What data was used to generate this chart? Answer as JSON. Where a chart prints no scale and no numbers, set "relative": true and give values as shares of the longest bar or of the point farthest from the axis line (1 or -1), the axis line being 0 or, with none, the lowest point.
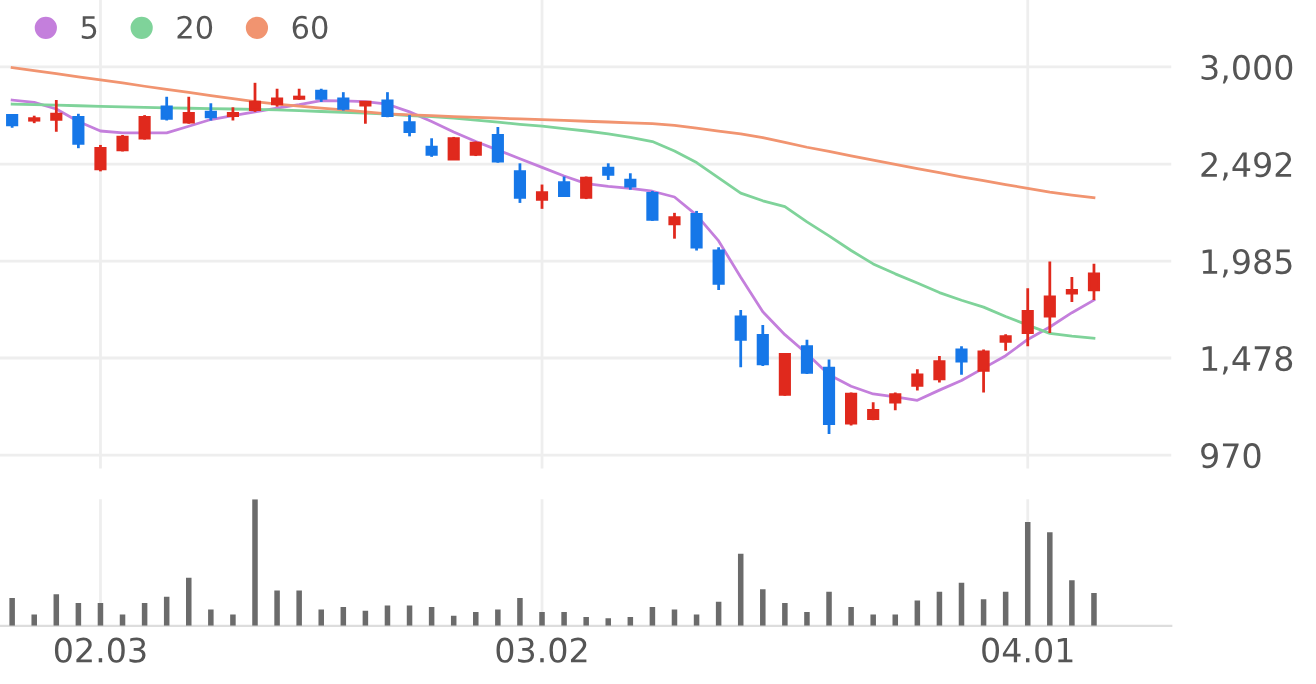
{
  "chart_data": [
    {
      "type": "candlestick",
      "categories": [
        null,
        null,
        null,
        null,
        "02.03",
        null,
        null,
        null,
        null,
        null,
        null,
        null,
        null,
        null,
        null,
        null,
        null,
        null,
        null,
        null,
        null,
        null,
        null,
        null,
        "03.02",
        null,
        null,
        null,
        null,
        null,
        null,
        null,
        null,
        null,
        null,
        null,
        null,
        null,
        null,
        null,
        null,
        null,
        null,
        null,
        null,
        null,
        "04.01",
        null,
        null,
        null
      ],
      "ohlc": [
        [
          2748,
          2748,
          2682,
          2696
        ],
        [
          2720,
          2745,
          2706,
          2731
        ],
        [
          2724,
          2827,
          2661,
          2755
        ],
        [
          2737,
          2755,
          2575,
          2599
        ],
        [
          2465,
          2592,
          2454,
          2575
        ],
        [
          2565,
          2644,
          2558,
          2634
        ],
        [
          2627,
          2748,
          2620,
          2737
        ],
        [
          2792,
          2844,
          2720,
          2730
        ],
        [
          2710,
          2844,
          2703,
          2758
        ],
        [
          2765,
          2810,
          2720,
          2737
        ],
        [
          2744,
          2789,
          2720,
          2758
        ],
        [
          2775,
          2917,
          2765,
          2817
        ],
        [
          2806,
          2886,
          2792,
          2834
        ],
        [
          2834,
          2886,
          2827,
          2844
        ],
        [
          2875,
          2886,
          2817,
          2834
        ],
        [
          2834,
          2868,
          2772,
          2782
        ],
        [
          2799,
          2817,
          2703,
          2817
        ],
        [
          2824,
          2868,
          2737,
          2744
        ],
        [
          2710,
          2748,
          2637,
          2661
        ],
        [
          2582,
          2627,
          2530,
          2541
        ],
        [
          2517,
          2634,
          2517,
          2627
        ],
        [
          2541,
          2610,
          2534,
          2603
        ],
        [
          2644,
          2686,
          2499,
          2506
        ],
        [
          2454,
          2496,
          2289,
          2316
        ],
        [
          2306,
          2385,
          2258,
          2344
        ],
        [
          2396,
          2427,
          2326,
          2326
        ],
        [
          2316,
          2427,
          2309,
          2420
        ],
        [
          2472,
          2496,
          2409,
          2437
        ],
        [
          2409,
          2444,
          2358,
          2375
        ],
        [
          2340,
          2351,
          2195,
          2202
        ],
        [
          2178,
          2237,
          2102,
          2213
        ],
        [
          2230,
          2247,
          2040,
          2057
        ],
        [
          2040,
          2057,
          1833,
          1867
        ],
        [
          1695,
          1729,
          1429,
          1574
        ],
        [
          1598,
          1650,
          1436,
          1446
        ],
        [
          1287,
          1498,
          1281,
          1498
        ],
        [
          1539,
          1574,
          1394,
          1401
        ],
        [
          1426,
          1470,
          1080,
          1134
        ],
        [
          1136,
          1298,
          1125,
          1291
        ],
        [
          1160,
          1246,
          1153,
          1205
        ],
        [
          1246,
          1298,
          1205,
          1288
        ],
        [
          1333,
          1419,
          1308,
          1391
        ],
        [
          1367,
          1488,
          1350,
          1460
        ],
        [
          1522,
          1540,
          1391,
          1460
        ],
        [
          1412,
          1522,
          1298,
          1512
        ],
        [
          1564,
          1602,
          1516,
          1591
        ],
        [
          1609,
          1843,
          1540,
          1723
        ],
        [
          1695,
          1982,
          1609,
          1799
        ],
        [
          1816,
          1902,
          1771,
          1833
        ],
        [
          1833,
          1971,
          1781,
          1919
        ]
      ],
      "colors": [
        "#1677e8",
        "#e0291d",
        "#e0291d",
        "#1677e8",
        "#e0291d",
        "#e0291d",
        "#e0291d",
        "#1677e8",
        "#e0291d",
        "#1677e8",
        "#e0291d",
        "#e0291d",
        "#e0291d",
        "#e0291d",
        "#1677e8",
        "#1677e8",
        "#e0291d",
        "#1677e8",
        "#1677e8",
        "#1677e8",
        "#e0291d",
        "#e0291d",
        "#1677e8",
        "#1677e8",
        "#e0291d",
        "#1677e8",
        "#e0291d",
        "#1677e8",
        "#1677e8",
        "#1677e8",
        "#e0291d",
        "#1677e8",
        "#1677e8",
        "#1677e8",
        "#1677e8",
        "#e0291d",
        "#1677e8",
        "#1677e8",
        "#e0291d",
        "#e0291d",
        "#e0291d",
        "#e0291d",
        "#e0291d",
        "#1677e8",
        "#e0291d",
        "#e0291d",
        "#e0291d",
        "#e0291d",
        "#e0291d",
        "#e0291d"
      ],
      "series": [
        {
          "name": "5",
          "type": "line",
          "color": "#c47fdc",
          "values": [
            2827,
            2815,
            2780,
            2715,
            2665,
            2655,
            2655,
            2655,
            2690,
            2725,
            2745,
            2765,
            2785,
            2803,
            2824,
            2822,
            2819,
            2805,
            2765,
            2715,
            2660,
            2610,
            2565,
            2520,
            2475,
            2430,
            2390,
            2375,
            2365,
            2350,
            2320,
            2225,
            2090,
            1900,
            1720,
            1600,
            1500,
            1390,
            1330,
            1290,
            1275,
            1257,
            1310,
            1360,
            1425,
            1490,
            1575,
            1640,
            1715,
            1781
          ]
        },
        {
          "name": "20",
          "type": "line",
          "color": "#7fd39a",
          "values": [
            2806,
            2803,
            2800,
            2797,
            2794,
            2791,
            2788,
            2786,
            2784,
            2782,
            2780,
            2778,
            2775,
            2771,
            2767,
            2763,
            2759,
            2753,
            2746,
            2740,
            2732,
            2722,
            2711,
            2700,
            2690,
            2678,
            2665,
            2650,
            2632,
            2610,
            2560,
            2500,
            2420,
            2340,
            2300,
            2270,
            2190,
            2117,
            2040,
            1970,
            1918,
            1870,
            1820,
            1780,
            1744,
            1695,
            1650,
            1607,
            1592,
            1581
          ]
        },
        {
          "name": "60",
          "type": "line",
          "color": "#f19470",
          "values": [
            2997,
            2981,
            2965,
            2948,
            2932,
            2916,
            2899,
            2883,
            2867,
            2850,
            2834,
            2818,
            2805,
            2795,
            2785,
            2775,
            2765,
            2755,
            2749,
            2745,
            2740,
            2736,
            2732,
            2728,
            2724,
            2720,
            2716,
            2712,
            2708,
            2703,
            2695,
            2680,
            2664,
            2650,
            2630,
            2605,
            2580,
            2558,
            2535,
            2513,
            2490,
            2468,
            2447,
            2425,
            2405,
            2385,
            2365,
            2345,
            2330,
            2316
          ]
        }
      ],
      "ylim": [
        900,
        3350
      ],
      "yticks": [
        {
          "value": 3000,
          "label": "3,000"
        },
        {
          "value": 2492,
          "label": "2,492"
        },
        {
          "value": 1985,
          "label": "1,985"
        },
        {
          "value": 1478,
          "label": "1,478"
        },
        {
          "value": 970,
          "label": "970"
        }
      ],
      "grid": true,
      "legend": "top left",
      "tick_labels": "y"
    },
    {
      "type": "bar",
      "relative": true,
      "color": "#6b6b6b",
      "grid": "x",
      "categories": [
        null,
        null,
        null,
        null,
        "02.03",
        null,
        null,
        null,
        null,
        null,
        null,
        null,
        null,
        null,
        null,
        null,
        null,
        null,
        null,
        null,
        null,
        null,
        null,
        null,
        "03.02",
        null,
        null,
        null,
        null,
        null,
        null,
        null,
        null,
        null,
        null,
        null,
        null,
        null,
        null,
        null,
        null,
        null,
        null,
        null,
        null,
        null,
        "04.01",
        null,
        null,
        null
      ],
      "values": [
        0.22,
        0.09,
        0.25,
        0.18,
        0.18,
        0.09,
        0.18,
        0.23,
        0.38,
        0.13,
        0.09,
        1,
        0.28,
        0.28,
        0.13,
        0.15,
        0.12,
        0.16,
        0.16,
        0.15,
        0.08,
        0.11,
        0.13,
        0.22,
        0.11,
        0.11,
        0.07,
        0.06,
        0.07,
        0.15,
        0.13,
        0.09,
        0.19,
        0.57,
        0.29,
        0.18,
        0.11,
        0.27,
        0.15,
        0.09,
        0.09,
        0.2,
        0.27,
        0.34,
        0.21,
        0.27,
        0.82,
        0.74,
        0.36,
        0.26
      ]
    }
  ]
}
